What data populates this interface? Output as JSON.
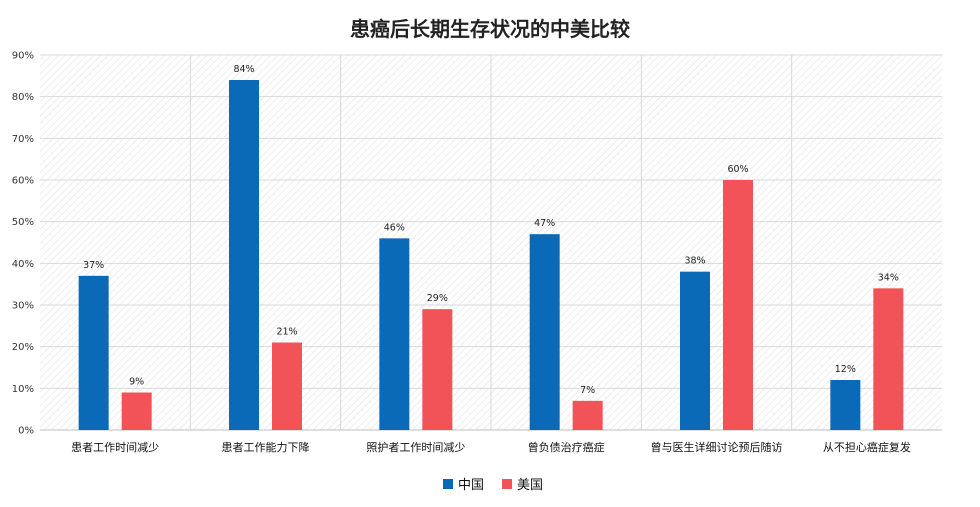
{
  "chart_data": {
    "type": "bar",
    "title": "患癌后长期生存状况的中美比较",
    "categories": [
      "患者工作时间减少",
      "患者工作能力下降",
      "照护者工作时间减少",
      "曾负债治疗癌症",
      "曾与医生详细讨论预后随访",
      "从不担心癌症复发"
    ],
    "series": [
      {
        "name": "中国",
        "values": [
          37,
          84,
          46,
          47,
          38,
          12
        ],
        "labels": [
          "37%",
          "84%",
          "46%",
          "47%",
          "38%",
          "12%"
        ],
        "color": "#0a6ab8"
      },
      {
        "name": "美国",
        "values": [
          9,
          21,
          29,
          7,
          60,
          34
        ],
        "labels": [
          "9%",
          "21%",
          "29%",
          "7%",
          "60%",
          "34%"
        ],
        "color": "#f25358"
      }
    ],
    "ylim": [
      0,
      90
    ],
    "yticks": [
      "0%",
      "10%",
      "20%",
      "30%",
      "40%",
      "50%",
      "60%",
      "70%",
      "80%",
      "90%"
    ],
    "grid": true,
    "legend_position": "bottom-center",
    "xlabel": "",
    "ylabel": ""
  }
}
